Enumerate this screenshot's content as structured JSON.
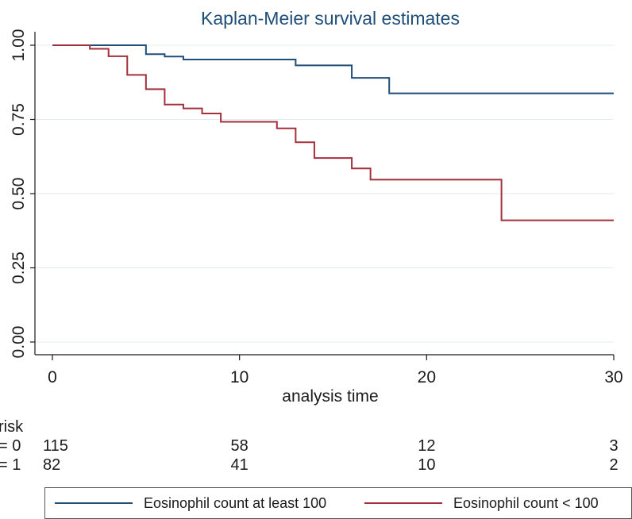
{
  "chart_data": {
    "type": "line",
    "step": true,
    "title": "Kaplan-Meier survival estimates",
    "xlabel": "analysis time",
    "ylabel": "",
    "xlim": [
      0,
      30
    ],
    "ylim": [
      0,
      1
    ],
    "xticks": [
      "0",
      "10",
      "20",
      "30"
    ],
    "yticks": [
      "0.00",
      "0.25",
      "0.50",
      "0.75",
      "1.00"
    ],
    "grid": true,
    "legend_position": "bottom",
    "series": [
      {
        "name": "Eosinophil count at least 100",
        "color": "#1f4e79",
        "x": [
          0,
          2,
          5,
          6,
          7,
          13,
          16,
          18,
          30
        ],
        "y": [
          1.0,
          1.0,
          0.97,
          0.962,
          0.952,
          0.932,
          0.89,
          0.838,
          0.838
        ]
      },
      {
        "name": "Eosinophil count < 100",
        "color": "#a3303c",
        "x": [
          0,
          2,
          3,
          4,
          5,
          6,
          7,
          8,
          9,
          12,
          13,
          14,
          16,
          17,
          24,
          30
        ],
        "y": [
          1.0,
          0.988,
          0.963,
          0.9,
          0.852,
          0.8,
          0.787,
          0.77,
          0.742,
          0.72,
          0.673,
          0.62,
          0.585,
          0.547,
          0.41,
          0.41
        ]
      }
    ],
    "risk_table": {
      "title": "risk",
      "rows": [
        {
          "label": "= 0",
          "values": [
            "115",
            "58",
            "12",
            "3"
          ]
        },
        {
          "label": "= 1",
          "values": [
            "82",
            "41",
            "10",
            "2"
          ]
        }
      ]
    }
  }
}
